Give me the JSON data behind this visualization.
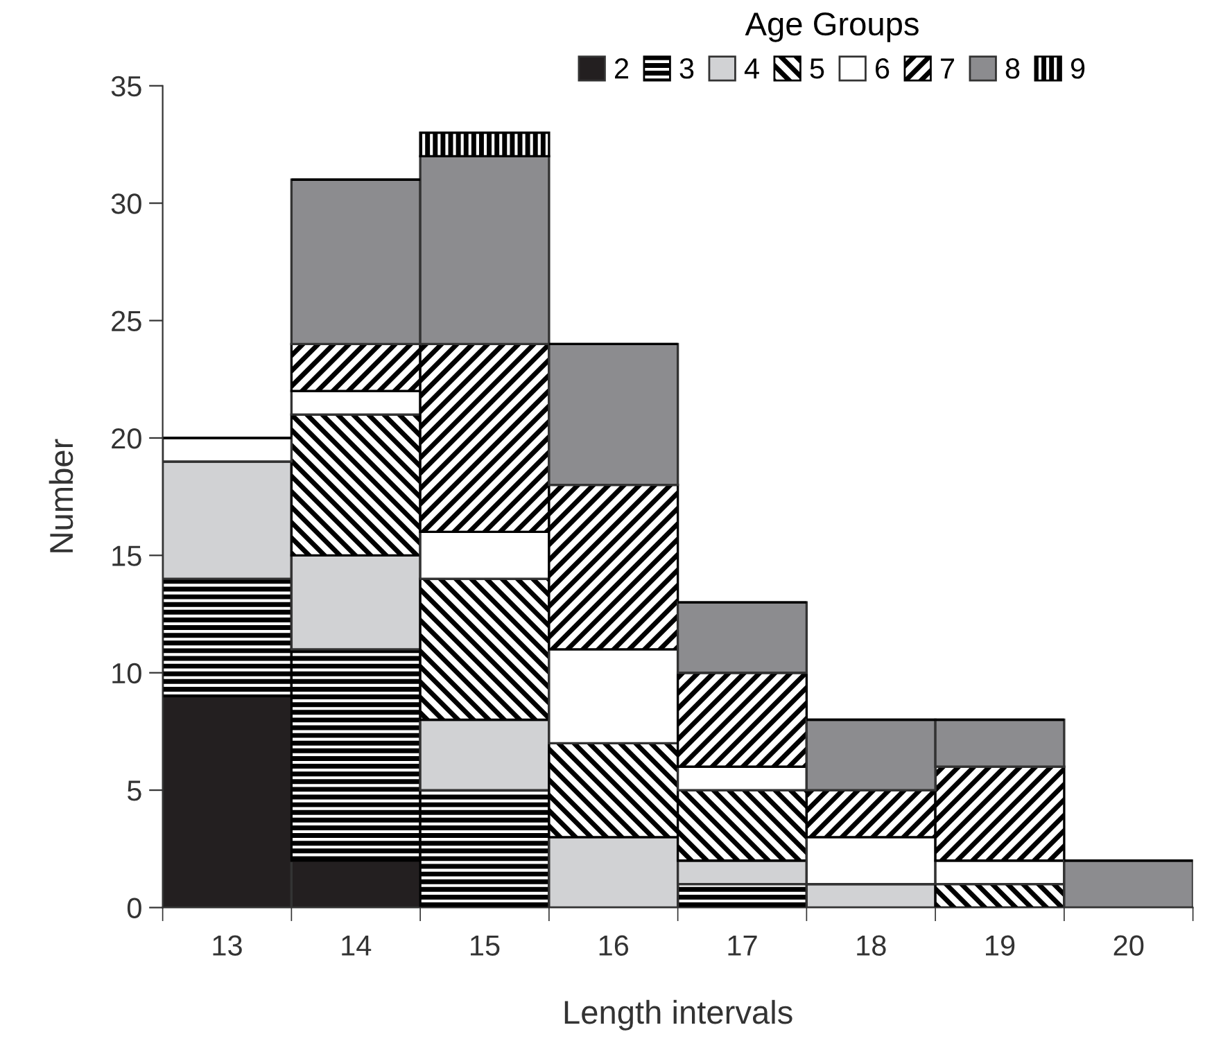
{
  "chart_data": {
    "type": "bar",
    "stacked": true,
    "xlabel": "Length intervals",
    "ylabel": "Number",
    "legend_title": "Age Groups",
    "legend": "top",
    "grid": false,
    "categories": [
      "13",
      "14",
      "15",
      "16",
      "17",
      "18",
      "19",
      "20"
    ],
    "ylim": [
      0,
      35
    ],
    "yticks": [
      0,
      5,
      10,
      15,
      20,
      25,
      30,
      35
    ],
    "series": [
      {
        "name": "2",
        "color": "#231f20",
        "values": [
          9,
          2,
          0,
          0,
          0,
          0,
          0,
          0
        ]
      },
      {
        "name": "3",
        "color": "#000000",
        "values": [
          5,
          9,
          5,
          0,
          1,
          0,
          0,
          0
        ]
      },
      {
        "name": "4",
        "color": "#d1d2d4",
        "values": [
          5,
          4,
          3,
          3,
          1,
          1,
          0,
          0
        ]
      },
      {
        "name": "5",
        "color": "#000000",
        "values": [
          0,
          6,
          6,
          4,
          3,
          0,
          1,
          0
        ]
      },
      {
        "name": "6",
        "color": "#ffffff",
        "values": [
          1,
          1,
          2,
          4,
          1,
          2,
          1,
          0
        ]
      },
      {
        "name": "7",
        "color": "#000000",
        "values": [
          0,
          2,
          8,
          7,
          4,
          2,
          4,
          0
        ]
      },
      {
        "name": "8",
        "color": "#8c8c8f",
        "values": [
          0,
          7,
          8,
          6,
          3,
          3,
          2,
          2
        ]
      },
      {
        "name": "9",
        "color": "#000000",
        "values": [
          0,
          0,
          1,
          0,
          0,
          0,
          0,
          0
        ]
      }
    ]
  }
}
